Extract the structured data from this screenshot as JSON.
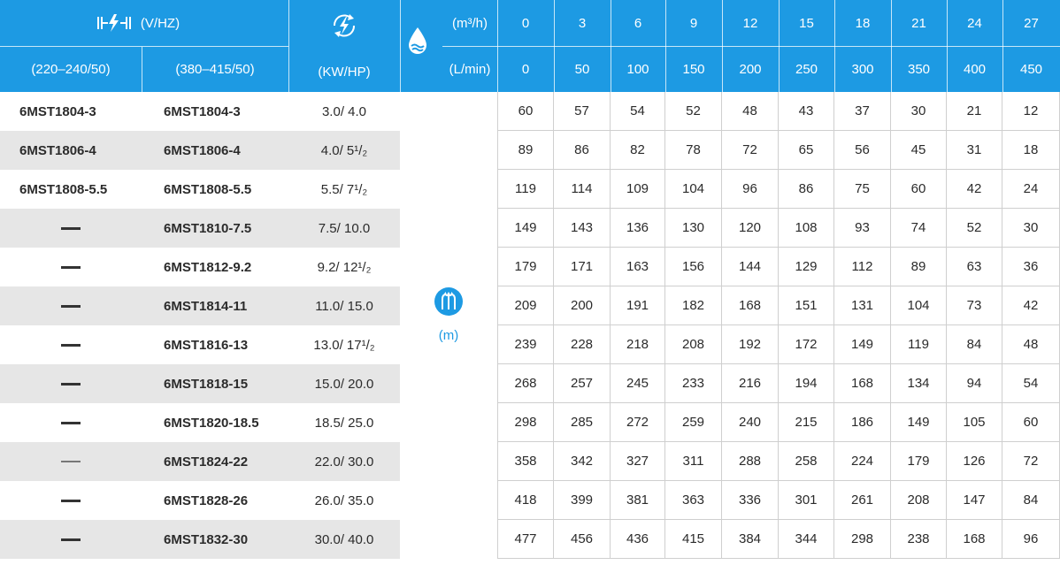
{
  "header": {
    "voltage_label": "(V/HZ)",
    "voltage_1": "(220–240/50)",
    "voltage_2": "(380–415/50)",
    "power_label": "(KW/HP)",
    "flow_unit_1": "(m³/h)",
    "flow_unit_2": "(L/min)",
    "flow_m3h": [
      "0",
      "3",
      "6",
      "9",
      "12",
      "15",
      "18",
      "21",
      "24",
      "27"
    ],
    "flow_lmin": [
      "0",
      "50",
      "100",
      "150",
      "200",
      "250",
      "300",
      "350",
      "400",
      "450"
    ]
  },
  "head_unit": "(m)",
  "colors": {
    "header_bg": "#1d9ae3",
    "alt_row": "#e6e6e6",
    "grid_line": "#cfcfcf"
  },
  "icons": [
    "electric-current-icon",
    "motor-power-icon",
    "water-drop-icon",
    "pump-head-icon"
  ],
  "rows": [
    {
      "model_1": "6MST1804-3",
      "model_2": "6MST1804-3",
      "power": "3.0/ 4.0",
      "heads": [
        "60",
        "57",
        "54",
        "52",
        "48",
        "43",
        "37",
        "30",
        "21",
        "12"
      ]
    },
    {
      "model_1": "6MST1806-4",
      "model_2": "6MST1806-4",
      "power": "4.0/ 5¹/₂",
      "heads": [
        "89",
        "86",
        "82",
        "78",
        "72",
        "65",
        "56",
        "45",
        "31",
        "18"
      ]
    },
    {
      "model_1": "6MST1808-5.5",
      "model_2": "6MST1808-5.5",
      "power": "5.5/ 7¹/₂",
      "heads": [
        "119",
        "114",
        "109",
        "104",
        "96",
        "86",
        "75",
        "60",
        "42",
        "24"
      ]
    },
    {
      "model_1": "—",
      "model_2": "6MST1810-7.5",
      "power": "7.5/ 10.0",
      "heads": [
        "149",
        "143",
        "136",
        "130",
        "120",
        "108",
        "93",
        "74",
        "52",
        "30"
      ]
    },
    {
      "model_1": "—",
      "model_2": "6MST1812-9.2",
      "power": "9.2/ 12¹/₂",
      "heads": [
        "179",
        "171",
        "163",
        "156",
        "144",
        "129",
        "112",
        "89",
        "63",
        "36"
      ]
    },
    {
      "model_1": "—",
      "model_2": "6MST1814-11",
      "power": "11.0/ 15.0",
      "heads": [
        "209",
        "200",
        "191",
        "182",
        "168",
        "151",
        "131",
        "104",
        "73",
        "42"
      ]
    },
    {
      "model_1": "—",
      "model_2": "6MST1816-13",
      "power": "13.0/ 17¹/₂",
      "heads": [
        "239",
        "228",
        "218",
        "208",
        "192",
        "172",
        "149",
        "119",
        "84",
        "48"
      ]
    },
    {
      "model_1": "—",
      "model_2": "6MST1818-15",
      "power": "15.0/ 20.0",
      "heads": [
        "268",
        "257",
        "245",
        "233",
        "216",
        "194",
        "168",
        "134",
        "94",
        "54"
      ]
    },
    {
      "model_1": "—",
      "model_2": "6MST1820-18.5",
      "power": "18.5/ 25.0",
      "heads": [
        "298",
        "285",
        "272",
        "259",
        "240",
        "215",
        "186",
        "149",
        "105",
        "60"
      ]
    },
    {
      "model_1": "—",
      "model_2": "6MST1824-22",
      "power": "22.0/ 30.0",
      "heads": [
        "358",
        "342",
        "327",
        "311",
        "288",
        "258",
        "224",
        "179",
        "126",
        "72"
      ]
    },
    {
      "model_1": "—",
      "model_2": "6MST1828-26",
      "power": "26.0/ 35.0",
      "heads": [
        "418",
        "399",
        "381",
        "363",
        "336",
        "301",
        "261",
        "208",
        "147",
        "84"
      ]
    },
    {
      "model_1": "—",
      "model_2": "6MST1832-30",
      "power": "30.0/ 40.0",
      "heads": [
        "477",
        "456",
        "436",
        "415",
        "384",
        "344",
        "298",
        "238",
        "168",
        "96"
      ]
    }
  ]
}
